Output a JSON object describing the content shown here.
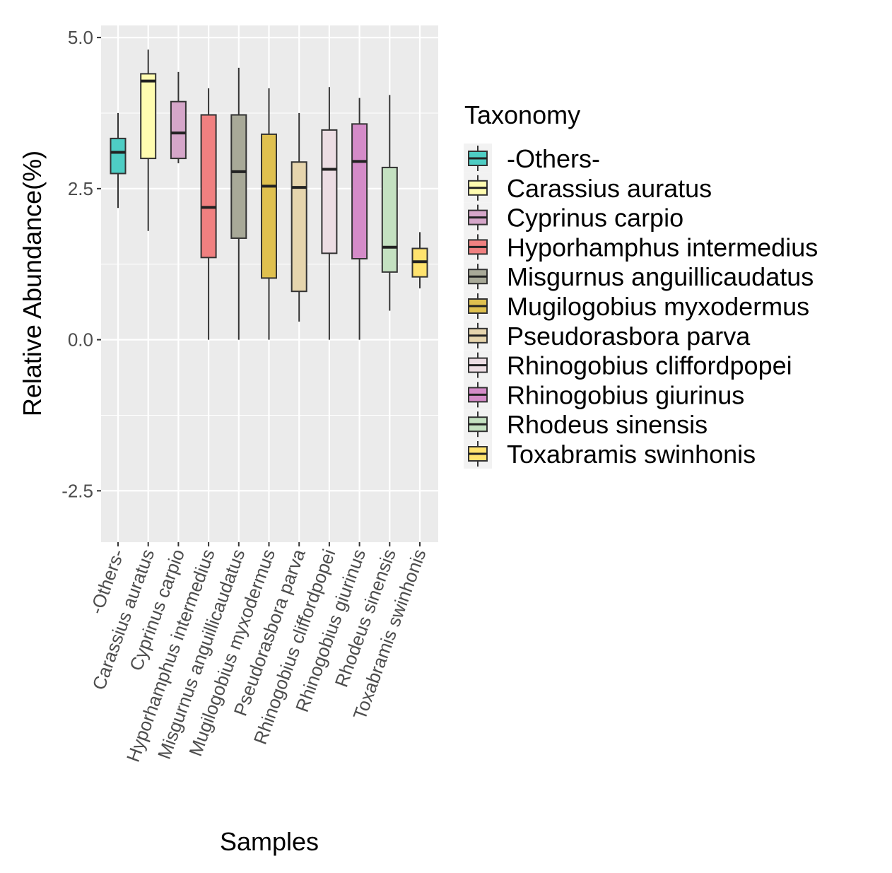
{
  "chart_data": {
    "type": "boxplot",
    "xlabel": "Samples",
    "ylabel": "Relative Abundance(%)",
    "ylim": [
      -3.35,
      5.2
    ],
    "y_ticks": [
      -2.5,
      0.0,
      2.5,
      5.0
    ],
    "y_tick_labels": [
      "-2.5",
      "0.0",
      "2.5",
      "5.0"
    ],
    "grid": true,
    "legend_title": "Taxonomy",
    "legend_position": "right",
    "categories": [
      "-Others-",
      "Carassius auratus",
      "Cyprinus carpio",
      "Hyporhamphus intermedius",
      "Misgurnus anguillicaudatus",
      "Mugilogobius myxodermus",
      "Pseudorasbora parva",
      "Rhinogobius cliffordpopei",
      "Rhinogobius giurinus",
      "Rhodeus sinensis",
      "Toxabramis swinhonis"
    ],
    "series": [
      {
        "name": "-Others-",
        "color": "#4ecdc4",
        "min": 2.18,
        "q1": 2.75,
        "median": 3.1,
        "q3": 3.33,
        "max": 3.75
      },
      {
        "name": "Carassius auratus",
        "color": "#fffcb0",
        "min": 1.8,
        "q1": 3.0,
        "median": 4.28,
        "q3": 4.4,
        "max": 4.8
      },
      {
        "name": "Cyprinus carpio",
        "color": "#d5a6c9",
        "min": 2.92,
        "q1": 3.0,
        "median": 3.42,
        "q3": 3.94,
        "max": 4.43
      },
      {
        "name": "Hyporhamphus intermedius",
        "color": "#f08080",
        "min": 0.0,
        "q1": 1.36,
        "median": 2.19,
        "q3": 3.72,
        "max": 4.16
      },
      {
        "name": "Misgurnus anguillicaudatus",
        "color": "#a8a998",
        "min": 0.0,
        "q1": 1.68,
        "median": 2.78,
        "q3": 3.72,
        "max": 4.5
      },
      {
        "name": "Mugilogobius myxodermus",
        "color": "#dfc04f",
        "min": 0.0,
        "q1": 1.02,
        "median": 2.54,
        "q3": 3.4,
        "max": 4.16
      },
      {
        "name": "Pseudorasbora parva",
        "color": "#e6d5ad",
        "min": 0.3,
        "q1": 0.8,
        "median": 2.52,
        "q3": 2.94,
        "max": 3.75
      },
      {
        "name": "Rhinogobius cliffordpopei",
        "color": "#ecdde3",
        "min": 0.0,
        "q1": 1.43,
        "median": 2.82,
        "q3": 3.47,
        "max": 4.18
      },
      {
        "name": "Rhinogobius giurinus",
        "color": "#d48bc8",
        "min": 0.0,
        "q1": 1.34,
        "median": 2.95,
        "q3": 3.57,
        "max": 4.0
      },
      {
        "name": "Rhodeus sinensis",
        "color": "#c4e1c1",
        "min": 0.48,
        "q1": 1.12,
        "median": 1.53,
        "q3": 2.85,
        "max": 4.05
      },
      {
        "name": "Toxabramis swinhonis",
        "color": "#ffe36e",
        "min": 0.85,
        "q1": 1.04,
        "median": 1.29,
        "q3": 1.51,
        "max": 1.78
      }
    ]
  }
}
